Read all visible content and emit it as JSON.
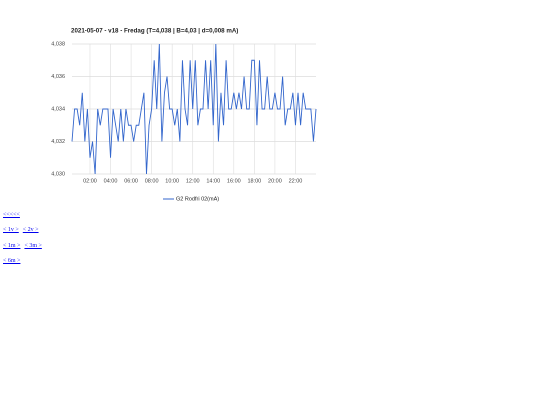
{
  "chart_data": {
    "type": "line",
    "title": "2021-05-07 - v18 - Fredag (T=4,038 | B=4,03 | d=0,008 mA)",
    "x": [
      15,
      30,
      45,
      60,
      75,
      90,
      105,
      120,
      135,
      150,
      165,
      180,
      195,
      210,
      225,
      240,
      255,
      270,
      285,
      300,
      315,
      330,
      345,
      360,
      375,
      390,
      405,
      420,
      435,
      450,
      465,
      480,
      495,
      510,
      525,
      540,
      555,
      570,
      585,
      600,
      615,
      630,
      645,
      660,
      675,
      690,
      705,
      720,
      735,
      750,
      765,
      780,
      795,
      810,
      825,
      840,
      855,
      870,
      885,
      900,
      915,
      930,
      945,
      960,
      975,
      990,
      1005,
      1020,
      1035,
      1050,
      1065,
      1080,
      1095,
      1110,
      1125,
      1140,
      1155,
      1170,
      1185,
      1200,
      1215,
      1230,
      1245,
      1260,
      1275,
      1290,
      1305,
      1320,
      1335,
      1350,
      1365,
      1380,
      1395,
      1410,
      1425,
      1440
    ],
    "series": [
      {
        "name": "G2 Rodfri 02(mA)",
        "color": "#3366cc",
        "values": [
          4.032,
          4.034,
          4.034,
          4.033,
          4.035,
          4.032,
          4.034,
          4.031,
          4.032,
          4.03,
          4.034,
          4.033,
          4.034,
          4.034,
          4.034,
          4.031,
          4.034,
          4.033,
          4.032,
          4.034,
          4.032,
          4.034,
          4.033,
          4.033,
          4.032,
          4.033,
          4.033,
          4.034,
          4.035,
          4.03,
          4.033,
          4.034,
          4.037,
          4.034,
          4.038,
          4.032,
          4.035,
          4.036,
          4.034,
          4.034,
          4.033,
          4.034,
          4.032,
          4.037,
          4.034,
          4.033,
          4.037,
          4.034,
          4.037,
          4.033,
          4.034,
          4.034,
          4.037,
          4.034,
          4.037,
          4.033,
          4.038,
          4.032,
          4.035,
          4.033,
          4.037,
          4.034,
          4.034,
          4.035,
          4.034,
          4.035,
          4.034,
          4.036,
          4.034,
          4.034,
          4.037,
          4.037,
          4.033,
          4.037,
          4.034,
          4.034,
          4.036,
          4.034,
          4.034,
          4.035,
          4.034,
          4.034,
          4.036,
          4.033,
          4.034,
          4.034,
          4.035,
          4.033,
          4.035,
          4.033,
          4.035,
          4.034,
          4.034,
          4.034,
          4.032,
          4.034
        ]
      }
    ],
    "xlim": [
      15,
      1440
    ],
    "xticks": [
      {
        "value": 120,
        "label": "02:00"
      },
      {
        "value": 240,
        "label": "04:00"
      },
      {
        "value": 360,
        "label": "06:00"
      },
      {
        "value": 480,
        "label": "08:00"
      },
      {
        "value": 600,
        "label": "10:00"
      },
      {
        "value": 720,
        "label": "12:00"
      },
      {
        "value": 840,
        "label": "14:00"
      },
      {
        "value": 960,
        "label": "16:00"
      },
      {
        "value": 1080,
        "label": "18:00"
      },
      {
        "value": 1200,
        "label": "20:00"
      },
      {
        "value": 1320,
        "label": "22:00"
      }
    ],
    "ylim": [
      4.03,
      4.038
    ],
    "yticks": [
      {
        "value": 4.03,
        "label": "4,030"
      },
      {
        "value": 4.032,
        "label": "4,032"
      },
      {
        "value": 4.034,
        "label": "4,034"
      },
      {
        "value": 4.036,
        "label": "4,036"
      },
      {
        "value": 4.038,
        "label": "4,038"
      }
    ],
    "grid": true,
    "legend": "bottom"
  },
  "links": [
    [
      "<<<<<"
    ],
    [
      "< 1v >",
      "< 2v >"
    ],
    [
      "< 1m >",
      "< 3m >"
    ],
    [
      "< 6m >"
    ]
  ]
}
